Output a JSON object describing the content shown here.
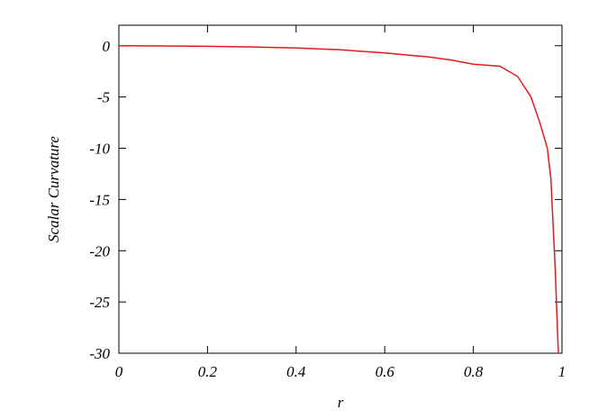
{
  "chart_data": {
    "type": "line",
    "x_label": "r",
    "y_label": "Scalar Curvature",
    "x": [
      0,
      0.1,
      0.2,
      0.3,
      0.4,
      0.5,
      0.6,
      0.7,
      0.75,
      0.8,
      0.86,
      0.9,
      0.93,
      0.95,
      0.967,
      0.975,
      0.98,
      0.985,
      0.99,
      0.992
    ],
    "series": [
      {
        "name": "Scalar Curvature",
        "color": "#e41a1c",
        "values": [
          0,
          -0.02,
          -0.05,
          -0.12,
          -0.22,
          -0.4,
          -0.7,
          -1.1,
          -1.4,
          -1.8,
          -2,
          -3,
          -5,
          -7.5,
          -10,
          -13,
          -17.5,
          -22,
          -28,
          -30
        ]
      }
    ],
    "xlim": [
      0,
      1
    ],
    "ylim": [
      -30,
      2
    ],
    "xticks": [
      0,
      0.2,
      0.4,
      0.6,
      0.8,
      1
    ],
    "yticks": [
      0,
      -5,
      -10,
      -15,
      -20,
      -25,
      -30
    ]
  }
}
